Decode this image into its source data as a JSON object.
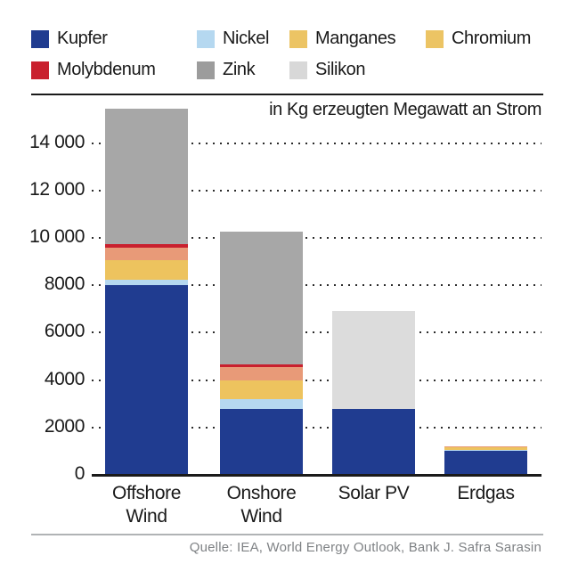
{
  "title": "in Kg erzeugten Megawatt an Strom",
  "source": "Quelle: IEA, World Energy Outlook, Bank J. Safra Sarasin",
  "colors": {
    "kupfer": "#203c90",
    "nickel": "#b5d8f0",
    "manganes": "#edc35e",
    "chromium_legend": "#ecc464",
    "chromium_bar": "#e89a78",
    "molybdenum": "#c9202e",
    "zink_legend": "#9c9c9c",
    "zink_bar": "#a7a7a7",
    "silikon_legend": "#d8d8d8",
    "silikon_bar": "#dcdcdc",
    "axis": "#1a1a1a",
    "source_gray": "#7f8285"
  },
  "chart_data": {
    "type": "bar",
    "stacked": true,
    "title": "in Kg erzeugten Megawatt an Strom",
    "categories": [
      "Offshore Wind",
      "Onshore Wind",
      "Solar PV",
      "Erdgas"
    ],
    "category_label_lines": [
      [
        "Offshore",
        "Wind"
      ],
      [
        "Onshore",
        "Wind"
      ],
      [
        "Solar PV"
      ],
      [
        "Erdgas"
      ]
    ],
    "series": [
      {
        "name": "Kupfer",
        "legend_color": "#203c90",
        "bar_color": "#203c90",
        "values": [
          8000,
          2800,
          2800,
          1000
        ]
      },
      {
        "name": "Nickel",
        "legend_color": "#b5d8f0",
        "bar_color": "#b5d8f0",
        "values": [
          250,
          400,
          0,
          60
        ]
      },
      {
        "name": "Manganes",
        "legend_color": "#ecc464",
        "bar_color": "#edc35e",
        "values": [
          800,
          800,
          0,
          110
        ]
      },
      {
        "name": "Chromium",
        "legend_color": "#ecc464",
        "bar_color": "#e89a78",
        "values": [
          550,
          550,
          0,
          40
        ]
      },
      {
        "name": "Molybdenum",
        "legend_color": "#c9202e",
        "bar_color": "#c9202e",
        "values": [
          150,
          130,
          0,
          0
        ]
      },
      {
        "name": "Zink",
        "legend_color": "#9c9c9c",
        "bar_color": "#a7a7a7",
        "values": [
          5700,
          5600,
          0,
          0
        ]
      },
      {
        "name": "Silikon",
        "legend_color": "#d8d8d8",
        "bar_color": "#dcdcdc",
        "values": [
          0,
          0,
          4100,
          0
        ]
      }
    ],
    "totals": [
      15450,
      10280,
      6900,
      1210
    ],
    "ylabel": "",
    "ylim": [
      0,
      15500
    ],
    "yticks": [
      {
        "value": 0,
        "label": "0"
      },
      {
        "value": 2000,
        "label": "2000"
      },
      {
        "value": 4000,
        "label": "4000"
      },
      {
        "value": 6000,
        "label": "6000"
      },
      {
        "value": 8000,
        "label": "8000"
      },
      {
        "value": 10000,
        "label": "10 000"
      },
      {
        "value": 12000,
        "label": "12 000"
      },
      {
        "value": 14000,
        "label": "14 000"
      }
    ],
    "grid": "dotted-horizontal",
    "legend_position": "top-left"
  }
}
